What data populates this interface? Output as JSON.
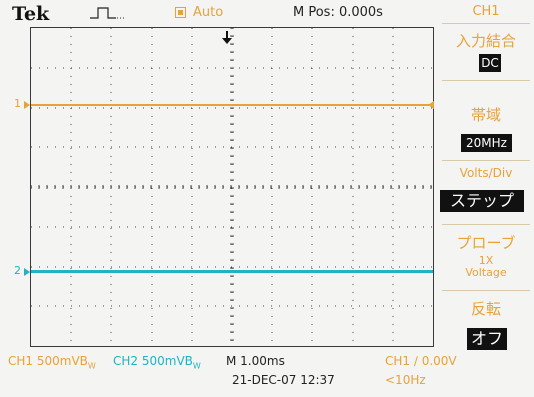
{
  "status": {
    "brand": "Tek",
    "run_state": "Auto",
    "m_pos": "M Pos: 0.000s"
  },
  "graticule": {
    "ch1_marker": "1",
    "ch2_marker": "2"
  },
  "menu": {
    "title": "CH1",
    "items": [
      {
        "label": "入力結合",
        "value": "DC"
      },
      {
        "label": "帯域",
        "value": "20MHz"
      },
      {
        "label": "Volts/Div",
        "value": "ステップ"
      },
      {
        "label": "プローブ",
        "sub1": "1X",
        "sub2": "Voltage"
      },
      {
        "label": "反転",
        "value": "オフ"
      }
    ]
  },
  "bottom": {
    "ch1_scale": "CH1  500mVB",
    "ch1_bw": "W",
    "ch2_scale": "CH2  500mVB",
    "ch2_bw": "W",
    "timebase": "M 1.00ms",
    "trigger": "CH1  ∕  0.00V",
    "date": "21-DEC-07 12:37",
    "freq": "<10Hz"
  },
  "colors": {
    "ch1": "#e8a23a",
    "ch2": "#20b3c2",
    "grid": "#444444"
  }
}
